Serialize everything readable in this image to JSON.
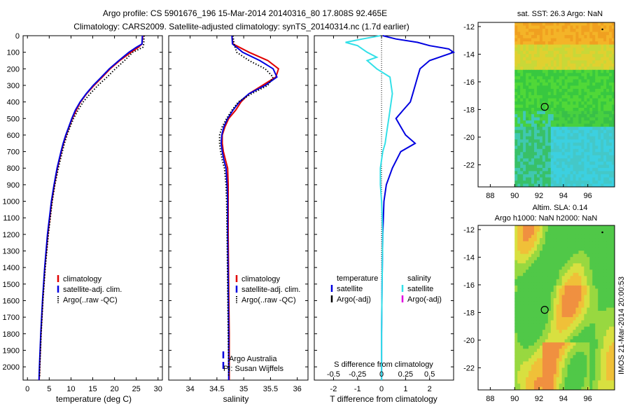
{
  "header": {
    "line1": "Argo profile: CS 5901676_196 15-Mar-2014 20140316_80 17.808S 92.465E",
    "line2": "Climatology: CARS2009. Satellite-adjusted climatology: synTS_20140314.nc (1.7d earlier)"
  },
  "colors": {
    "climatology": "#e00000",
    "satellite": "#0000e0",
    "argo": "#000000",
    "sat_salinity": "#33e0e8",
    "argo_adj_salinity": "#e000e0",
    "frame": "#000000"
  },
  "chart_data": [
    {
      "id": "temperature",
      "type": "line",
      "xlabel": "temperature (deg C)",
      "ylabel": "",
      "xlim": [
        -1,
        31
      ],
      "ylim": [
        2080,
        0
      ],
      "xticks": [
        0,
        5,
        10,
        15,
        20,
        25,
        30
      ],
      "yticks": [
        0,
        100,
        200,
        300,
        400,
        500,
        600,
        700,
        800,
        900,
        1000,
        1100,
        1200,
        1300,
        1400,
        1500,
        1600,
        1700,
        1800,
        1900,
        2000
      ],
      "legend": {
        "position": "lower-right",
        "entries": [
          "climatology",
          "satellite-adj. clim.",
          "Argo(..raw -QC)"
        ]
      },
      "series": [
        {
          "name": "climatology",
          "style": "solid",
          "color": "#e00000",
          "depth": [
            0,
            50,
            70,
            100,
            150,
            200,
            250,
            300,
            350,
            400,
            450,
            500,
            550,
            600,
            650,
            700,
            800,
            900,
            1000,
            1200,
            1400,
            1600,
            1800,
            2000,
            2080
          ],
          "values": [
            26.5,
            26.3,
            25.5,
            23.8,
            21.2,
            19.0,
            17.2,
            15.3,
            13.6,
            12.2,
            11.2,
            10.3,
            9.6,
            8.9,
            8.3,
            7.8,
            6.9,
            6.2,
            5.6,
            4.7,
            4.0,
            3.5,
            3.1,
            2.8,
            2.7
          ]
        },
        {
          "name": "satellite-adj. clim.",
          "style": "solid",
          "color": "#0000e0",
          "depth": [
            0,
            50,
            70,
            100,
            150,
            200,
            250,
            300,
            350,
            400,
            450,
            500,
            550,
            600,
            650,
            700,
            800,
            900,
            1000,
            1200,
            1400,
            1600,
            1800,
            2000,
            2080
          ],
          "values": [
            26.4,
            26.3,
            25.0,
            23.3,
            21.0,
            18.8,
            17.0,
            15.1,
            13.5,
            12.1,
            11.0,
            10.2,
            9.5,
            8.8,
            8.2,
            7.7,
            6.8,
            6.1,
            5.5,
            4.6,
            3.95,
            3.45,
            3.05,
            2.75,
            2.65
          ]
        },
        {
          "name": "Argo(..raw -QC)",
          "style": "dotted",
          "color": "#000000",
          "depth": [
            0,
            50,
            70,
            100,
            150,
            200,
            250,
            300,
            350,
            400,
            450,
            500,
            550,
            600,
            650,
            700,
            800,
            900,
            1000,
            1200,
            1400,
            1600,
            1800,
            2000,
            2060
          ],
          "values": [
            26.8,
            26.7,
            26.5,
            24.2,
            22.3,
            20.2,
            18.3,
            16.2,
            14.4,
            12.8,
            11.6,
            10.6,
            9.8,
            9.1,
            8.5,
            8.0,
            7.1,
            6.3,
            5.7,
            4.8,
            4.1,
            3.55,
            3.15,
            2.85,
            2.8
          ]
        }
      ]
    },
    {
      "id": "salinity",
      "type": "line",
      "xlabel": "salinity",
      "xlim": [
        33.6,
        36.2
      ],
      "ylim": [
        2080,
        0
      ],
      "xticks": [
        34,
        34.5,
        35,
        35.5,
        36
      ],
      "tick_labels": [
        "34",
        "34.5",
        "35",
        "35.5",
        "36"
      ],
      "legend": {
        "position": "lower-right",
        "entries": [
          "climatology",
          "satellite-adj. clim.",
          "Argo(..raw -QC)"
        ]
      },
      "annotation": [
        "Argo Australia",
        "PI: Susan Wijffels"
      ],
      "series": [
        {
          "name": "climatology",
          "style": "solid",
          "color": "#e00000",
          "depth": [
            0,
            50,
            100,
            150,
            200,
            250,
            300,
            350,
            400,
            450,
            500,
            550,
            600,
            650,
            700,
            750,
            800,
            900,
            1000,
            1200,
            1500,
            1800,
            2000,
            2080
          ],
          "values": [
            34.78,
            34.8,
            35.1,
            35.45,
            35.65,
            35.6,
            35.35,
            35.1,
            34.95,
            34.85,
            34.72,
            34.65,
            34.6,
            34.6,
            34.62,
            34.66,
            34.7,
            34.71,
            34.71,
            34.71,
            34.72,
            34.73,
            34.73,
            34.73
          ]
        },
        {
          "name": "satellite-adj. clim.",
          "style": "solid",
          "color": "#0000e0",
          "depth": [
            0,
            50,
            100,
            150,
            200,
            250,
            300,
            350,
            400,
            450,
            500,
            550,
            600,
            650,
            700,
            750,
            800,
            900,
            1000,
            1200,
            1500,
            1800,
            2000,
            2080
          ],
          "values": [
            34.78,
            34.79,
            34.98,
            35.3,
            35.55,
            35.62,
            35.4,
            35.1,
            34.92,
            34.8,
            34.7,
            34.63,
            34.59,
            34.58,
            34.6,
            34.63,
            34.67,
            34.69,
            34.7,
            34.7,
            34.71,
            34.72,
            34.72,
            34.72
          ]
        },
        {
          "name": "Argo(..raw -QC)",
          "style": "dotted",
          "color": "#000000",
          "depth": [
            0,
            50,
            100,
            150,
            200,
            250,
            300,
            350,
            400,
            450,
            500,
            550,
            600,
            650,
            700,
            750,
            800,
            900,
            1000,
            1200,
            1500,
            1800,
            2000,
            2060
          ],
          "values": [
            34.8,
            34.82,
            34.87,
            35.1,
            35.4,
            35.55,
            35.45,
            35.15,
            34.9,
            34.78,
            34.68,
            34.6,
            34.55,
            34.55,
            34.57,
            34.6,
            34.64,
            34.67,
            34.68,
            34.69,
            34.7,
            34.71,
            34.72,
            34.72
          ]
        }
      ]
    },
    {
      "id": "difference",
      "type": "line",
      "xlabel": "T difference from climatology",
      "top_xlabel": "S difference from climatology",
      "xlim": [
        -2.8,
        3.0
      ],
      "ylim": [
        2080,
        0
      ],
      "xticks": [
        -2,
        -1,
        0,
        1,
        2
      ],
      "s_tick_labels": [
        "-0.5",
        "-0.25",
        "0",
        "0.25",
        "0.5"
      ],
      "legend_temperature": {
        "title": "temperature",
        "entries": [
          "satellite",
          "Argo(-adj)"
        ]
      },
      "legend_salinity": {
        "title": "salinity",
        "entries": [
          "satellite",
          "Argo(-adj)"
        ]
      },
      "series": [
        {
          "name": "T satellite",
          "style": "solid",
          "color": "#0000e0",
          "depth": [
            0,
            20,
            40,
            60,
            80,
            100,
            130,
            150,
            200,
            250,
            300,
            350,
            400,
            450,
            500,
            550,
            600,
            650,
            700,
            800,
            900,
            1000,
            1200,
            1500,
            1800,
            2000,
            2080
          ],
          "values": [
            0.05,
            0.6,
            1.5,
            2.0,
            2.8,
            3.0,
            2.4,
            2.0,
            1.6,
            1.5,
            1.4,
            1.3,
            1.2,
            0.9,
            0.6,
            0.8,
            1.0,
            1.4,
            0.8,
            0.45,
            0.2,
            0.1,
            0.05,
            0.02,
            0.0,
            0.0,
            0.0
          ]
        },
        {
          "name": "S satellite",
          "style": "solid",
          "color": "#33e0e8",
          "depth": [
            0,
            20,
            40,
            60,
            80,
            100,
            130,
            150,
            200,
            250,
            300,
            350,
            400,
            450,
            500,
            550,
            600,
            650,
            700,
            800,
            900,
            1000,
            1200,
            1500,
            1800,
            2000,
            2080
          ],
          "values": [
            -0.05,
            -0.8,
            -1.5,
            -1.0,
            -0.8,
            -0.6,
            -0.2,
            -0.6,
            -0.2,
            0.35,
            0.4,
            0.45,
            0.4,
            0.35,
            0.3,
            0.25,
            0.2,
            0.15,
            0.05,
            -0.05,
            -0.05,
            0.0,
            0.05,
            0.02,
            0.0,
            0.0,
            0.0
          ]
        }
      ]
    }
  ],
  "map_sst": {
    "title": "sat. SST: 26.3 Argo: NaN",
    "lon_ticks": [
      "88",
      "90",
      "92",
      "94",
      "96"
    ],
    "lat_ticks": [
      "-12",
      "-14",
      "-16",
      "-18",
      "-20",
      "-22"
    ],
    "lon_range": [
      87,
      98.2
    ],
    "lat_range": [
      -23.6,
      -11.7
    ],
    "marker": {
      "lon": 92.465,
      "lat": -17.808
    }
  },
  "map_sla": {
    "title_line1": "Altim. SLA: 0.14",
    "title_line2": "Argo h1000: NaN h2000: NaN",
    "lon_ticks": [
      "88",
      "90",
      "92",
      "94",
      "96"
    ],
    "lat_ticks": [
      "-12",
      "-14",
      "-16",
      "-18",
      "-20",
      "-22"
    ],
    "lon_range": [
      87,
      98.2
    ],
    "lat_range": [
      -23.6,
      -11.7
    ],
    "marker": {
      "lon": 92.465,
      "lat": -17.808
    }
  },
  "footer": {
    "stamp": "IMOS 21-Mar-2014 20:00:53"
  }
}
